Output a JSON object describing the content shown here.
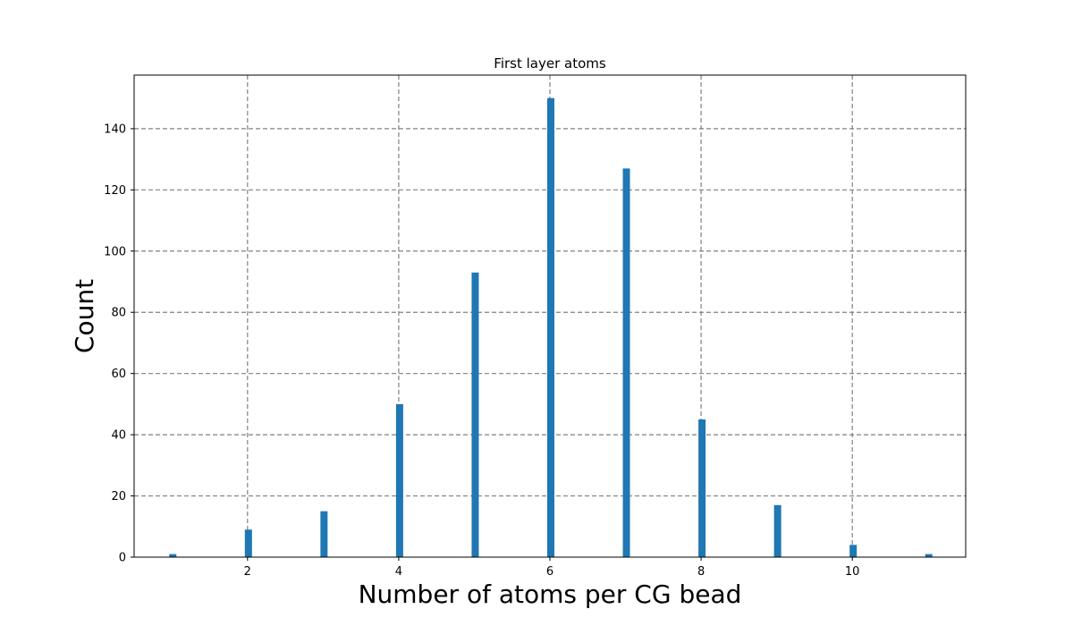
{
  "chart_data": {
    "type": "bar",
    "title": "First layer atoms",
    "xlabel": "Number of atoms per CG bead",
    "ylabel": "Count",
    "x": [
      1,
      2,
      3,
      4,
      5,
      6,
      7,
      8,
      9,
      10,
      11
    ],
    "values": [
      1,
      9,
      15,
      50,
      93,
      150,
      127,
      45,
      17,
      4,
      1
    ],
    "xlim": [
      0.5,
      11.5
    ],
    "ylim": [
      0,
      157.5
    ],
    "xticks": [
      2,
      4,
      6,
      8,
      10
    ],
    "yticks": [
      0,
      20,
      40,
      60,
      80,
      100,
      120,
      140
    ],
    "grid": true,
    "bar_color": "#1f77b4",
    "grid_color": "#808080"
  }
}
